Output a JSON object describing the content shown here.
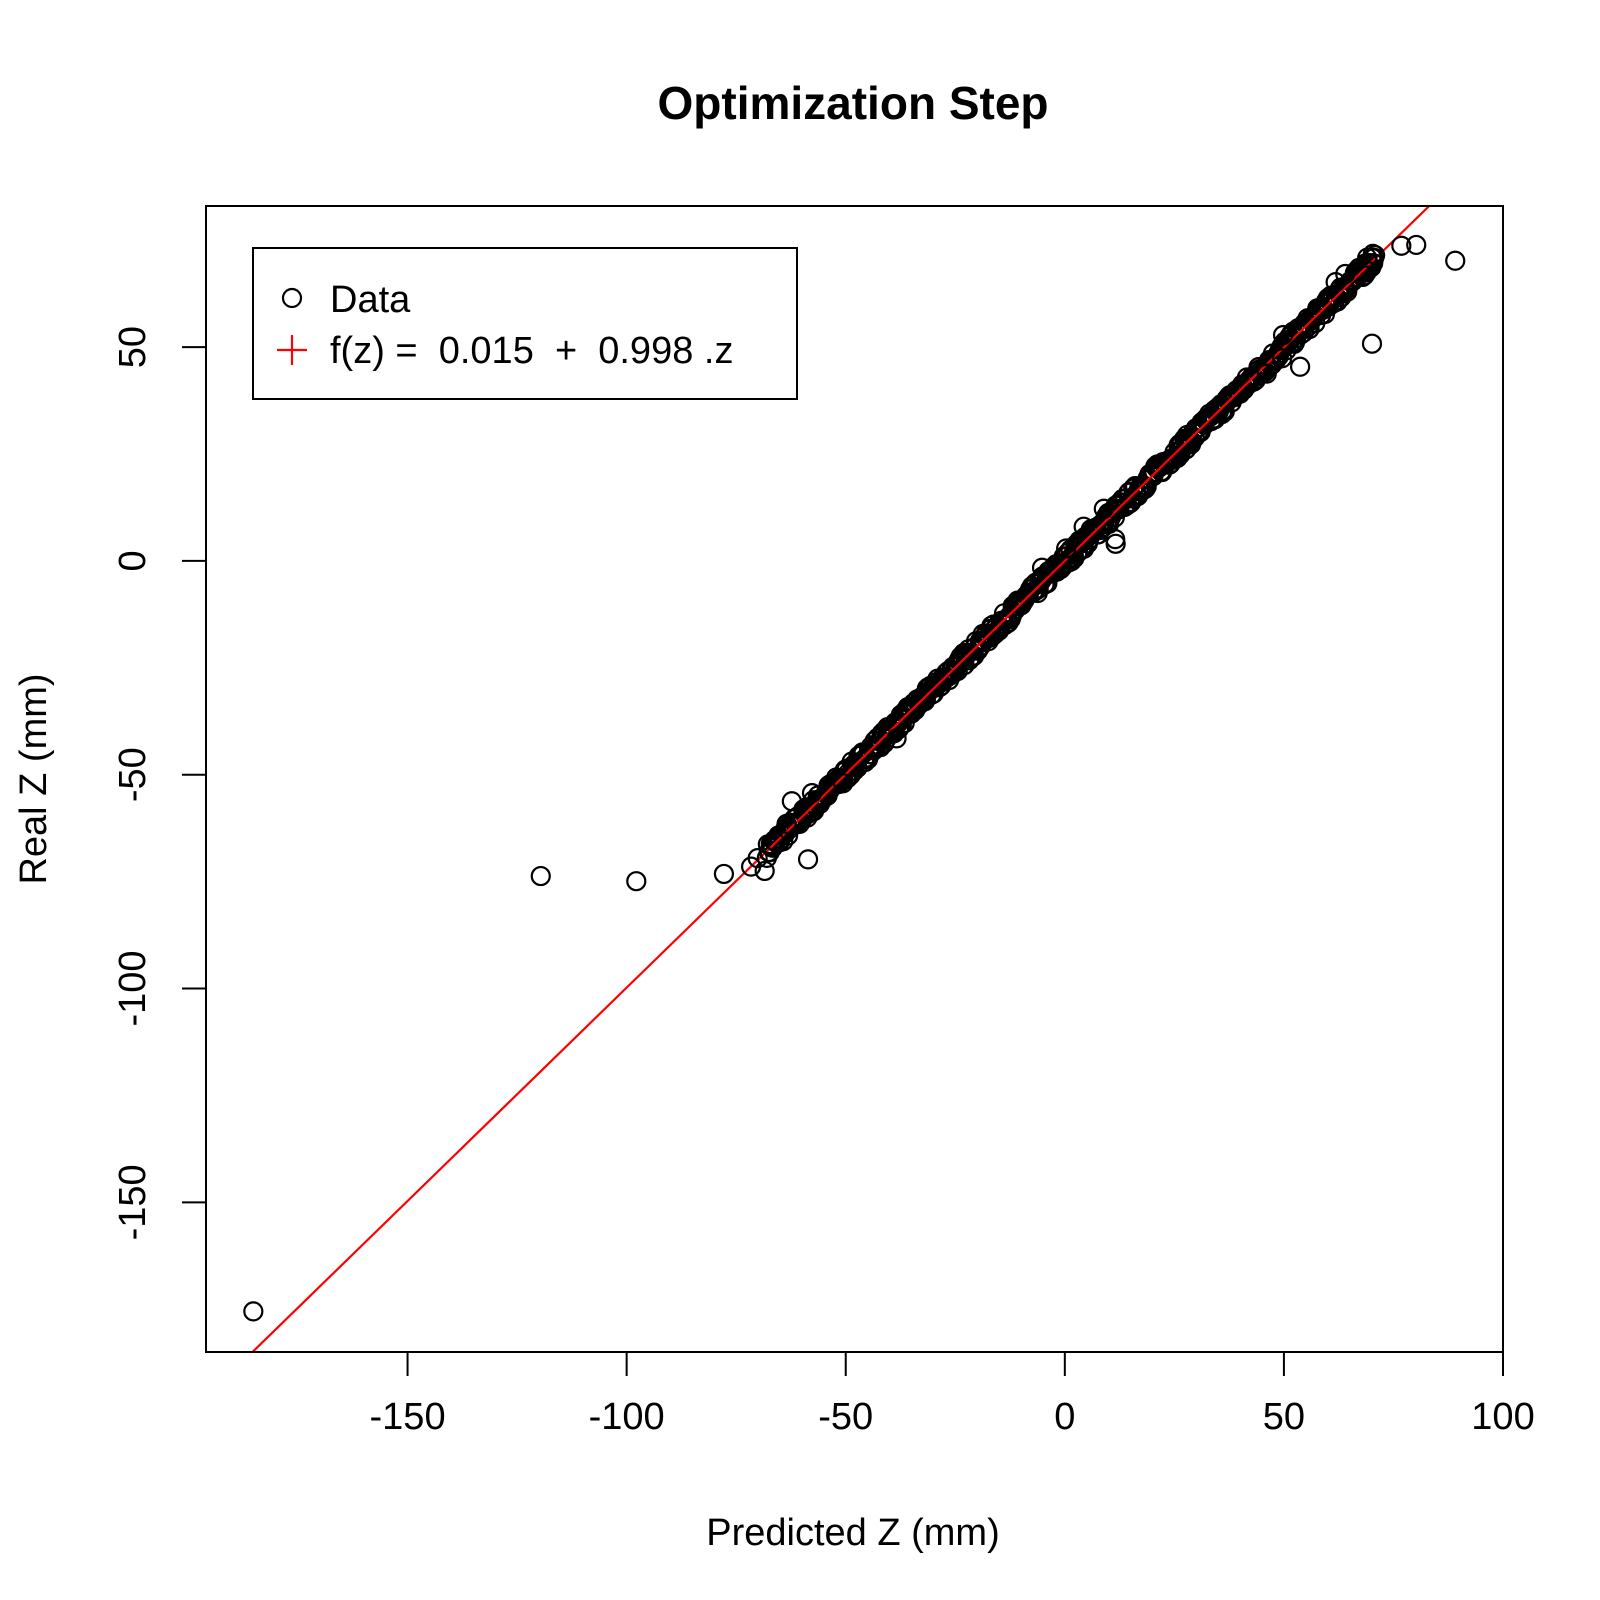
{
  "chart_data": {
    "type": "scatter",
    "title": "Optimization Step",
    "xlabel": "Predicted Z (mm)",
    "ylabel": "Real Z (mm)",
    "xlim": [
      -196,
      100
    ],
    "ylim": [
      -185,
      83
    ],
    "xticks": [
      -150,
      -100,
      -50,
      0,
      50,
      100
    ],
    "yticks": [
      -150,
      -100,
      -50,
      0,
      50
    ],
    "grid": false,
    "legend": {
      "position": "top-left",
      "entries": [
        {
          "label": "Data",
          "marker": "circle",
          "color": "#000000"
        },
        {
          "label": "f(z) =  0.015  +  0.998 .z",
          "marker": "plus",
          "color": "#ff0000"
        }
      ]
    },
    "fit": {
      "intercept": 0.015,
      "slope": 0.998,
      "color": "#ff0000"
    },
    "dense_band": {
      "x_range": [
        -68,
        71
      ],
      "spread": 1.6
    },
    "series": [
      {
        "name": "Data",
        "points": [
          [
            -185.2,
            -175.5
          ],
          [
            -119.6,
            -73.7
          ],
          [
            -97.8,
            -74.9
          ],
          [
            -77.8,
            -73.2
          ],
          [
            -71.6,
            -71.5
          ],
          [
            -68.5,
            -72.5
          ],
          [
            -70.1,
            -69.5
          ],
          [
            -58.6,
            -69.8
          ],
          [
            -62.3,
            -56.2
          ],
          [
            -57.7,
            -54.3
          ],
          [
            -50.6,
            -52.0
          ],
          [
            -38.4,
            -41.5
          ],
          [
            -5.2,
            -1.6
          ],
          [
            0.3,
            2.9
          ],
          [
            4.3,
            8.0
          ],
          [
            11.5,
            5.1
          ],
          [
            11.6,
            4.0
          ],
          [
            8.9,
            12.2
          ],
          [
            46.1,
            43.8
          ],
          [
            53.7,
            45.4
          ],
          [
            70.1,
            50.8
          ],
          [
            76.8,
            73.7
          ],
          [
            80.2,
            73.9
          ],
          [
            89.1,
            70.2
          ],
          [
            70.3,
            71.8
          ],
          [
            69.0,
            70.9
          ],
          [
            64.0,
            67.1
          ],
          [
            61.8,
            65.2
          ],
          [
            49.6,
            47.4
          ],
          [
            49.8,
            52.8
          ],
          [
            -66.3,
            -65.5
          ],
          [
            -63.5,
            -61.5
          ]
        ]
      }
    ]
  }
}
